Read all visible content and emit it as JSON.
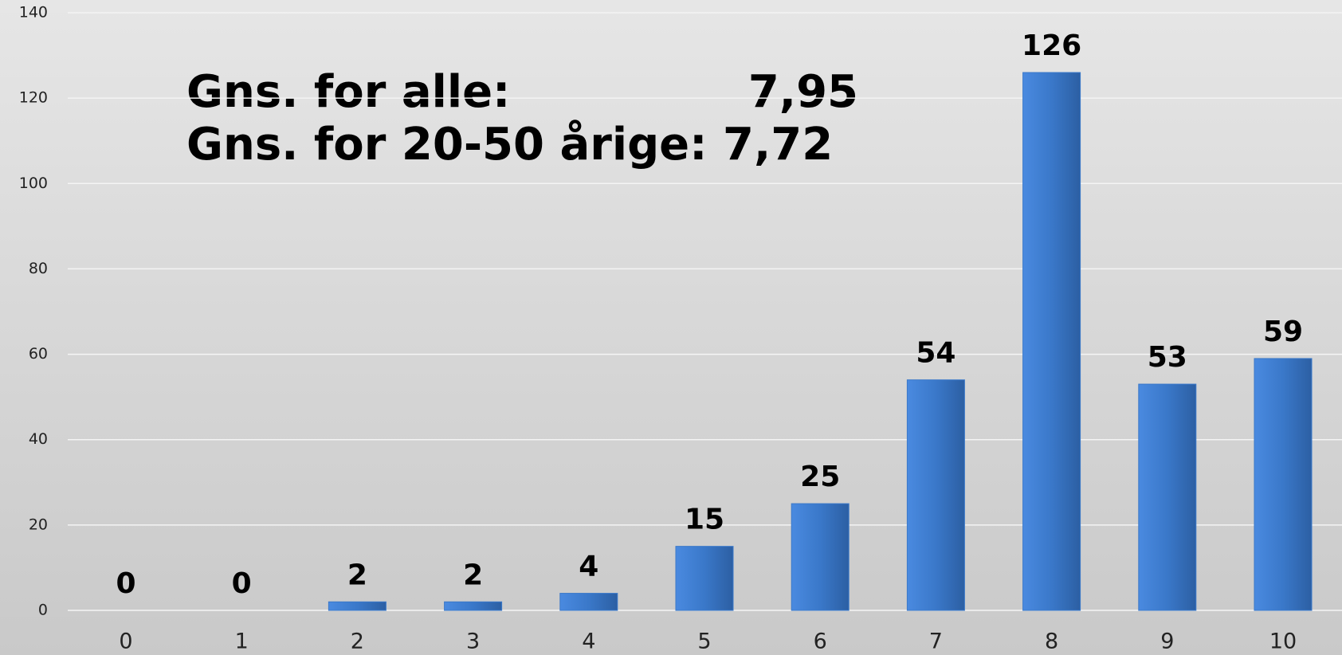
{
  "chart_data": {
    "type": "bar",
    "annotations": [
      "Gns. for alle:",
      "7,95",
      "Gns. for 20-50 årige: 7,72"
    ],
    "categories": [
      "0",
      "1",
      "2",
      "3",
      "4",
      "5",
      "6",
      "7",
      "8",
      "9",
      "10"
    ],
    "values": [
      0,
      0,
      2,
      2,
      4,
      15,
      25,
      54,
      126,
      53,
      59
    ],
    "color": "#3a78c9",
    "ylim": [
      0,
      140
    ],
    "yticks": [
      0,
      20,
      40,
      60,
      80,
      100,
      120,
      140
    ],
    "grid": true
  }
}
